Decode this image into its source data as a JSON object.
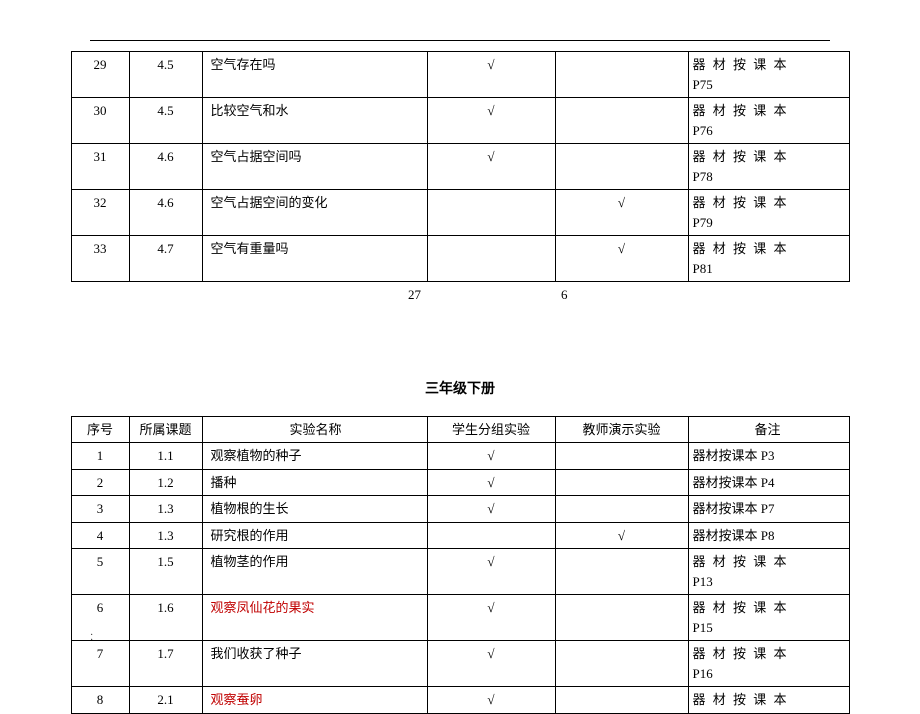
{
  "table1": {
    "rows": [
      {
        "idx": "29",
        "chap": "4.5",
        "name": "空气存在吗",
        "stu": "√",
        "tch": "",
        "note_a": "器 材 按 课 本",
        "note_b": "P75"
      },
      {
        "idx": "30",
        "chap": "4.5",
        "name": "比较空气和水",
        "stu": "√",
        "tch": "",
        "note_a": "器 材 按 课 本",
        "note_b": "P76"
      },
      {
        "idx": "31",
        "chap": "4.6",
        "name": "空气占据空间吗",
        "stu": "√",
        "tch": "",
        "note_a": "器 材 按 课 本",
        "note_b": "P78"
      },
      {
        "idx": "32",
        "chap": "4.6",
        "name": "空气占据空间的变化",
        "stu": "",
        "tch": "√",
        "note_a": "器 材 按 课 本",
        "note_b": "P79"
      },
      {
        "idx": "33",
        "chap": "4.7",
        "name": "空气有重量吗",
        "stu": "",
        "tch": "√",
        "note_a": "器 材 按 课 本",
        "note_b": "P81"
      }
    ],
    "sum_stu": "27",
    "sum_tch": "6"
  },
  "section2_title": "三年级下册",
  "table2": {
    "headers": {
      "idx": "序号",
      "chap": "所属课题",
      "name": "实验名称",
      "stu": "学生分组实验",
      "tch": "教师演示实验",
      "note": "备注"
    },
    "rows": [
      {
        "idx": "1",
        "chap": "1.1",
        "name": "观察植物的种子",
        "stu": "√",
        "tch": "",
        "note": "器材按课本 P3",
        "multiline": false,
        "red": false
      },
      {
        "idx": "2",
        "chap": "1.2",
        "name": "播种",
        "stu": "√",
        "tch": "",
        "note": "器材按课本 P4",
        "multiline": false,
        "red": false
      },
      {
        "idx": "3",
        "chap": "1.3",
        "name": "植物根的生长",
        "stu": "√",
        "tch": "",
        "note": "器材按课本 P7",
        "multiline": false,
        "red": false
      },
      {
        "idx": "4",
        "chap": "1.3",
        "name": "研究根的作用",
        "stu": "",
        "tch": "√",
        "note": "器材按课本 P8",
        "multiline": false,
        "red": false
      },
      {
        "idx": "5",
        "chap": "1.5",
        "name": "植物茎的作用",
        "stu": "√",
        "tch": "",
        "note_a": "器 材 按 课 本",
        "note_b": "P13",
        "multiline": true,
        "red": false
      },
      {
        "idx": "6",
        "chap": "1.6",
        "name": "观察凤仙花的果实",
        "stu": "√",
        "tch": "",
        "note_a": "器 材 按 课 本",
        "note_b": "P15",
        "multiline": true,
        "red": true
      },
      {
        "idx": "7",
        "chap": "1.7",
        "name": "我们收获了种子",
        "stu": "√",
        "tch": "",
        "note_a": "器 材 按 课 本",
        "note_b": "P16",
        "multiline": true,
        "red": false
      },
      {
        "idx": "8",
        "chap": "2.1",
        "name": "观察蚕卵",
        "stu": "√",
        "tch": "",
        "note_a": "器 材 按 课 本",
        "note_b": "",
        "multiline": true,
        "red": true
      }
    ]
  },
  "footer": "·\n·"
}
